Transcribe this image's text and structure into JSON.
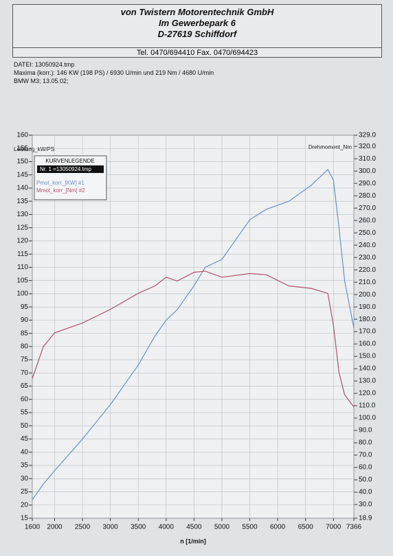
{
  "header": {
    "company": "von Twistern Motorentechnik GmbH",
    "street": "Im Gewerbepark 6",
    "city": "D-27619 Schiffdorf",
    "phone": "Tel. 0470/694410   Fax. 0470/694423",
    "file": "DATEI: 13050924.tmp",
    "maxima": "Maxima (korr.):  146 KW (198 PS) / 6930 U/min  und  219 Nm / 4680 U/min",
    "vehicle": "BMW M3; 13.05.02;"
  },
  "chart_data": {
    "type": "line",
    "xlabel": "n  [1/min]",
    "ylabel": "Leistung_kW/PS",
    "y2label": "Drehmoment_Nm",
    "legend_title": "KURVENLEGENDE",
    "legend_file": "Nr. 1 =13050924.tmp",
    "legend": "upper left",
    "grid": true,
    "x": [
      1600,
      1800,
      2000,
      2500,
      3000,
      3500,
      3800,
      4000,
      4200,
      4500,
      4700,
      5000,
      5500,
      5800,
      6200,
      6600,
      6900,
      7000,
      7100,
      7200,
      7366
    ],
    "series": [
      {
        "name": "Pmot_korr_[KW] #1",
        "color": "#6b8fc4",
        "axis": "y",
        "values": [
          22,
          28,
          33,
          45,
          58,
          73,
          84,
          90,
          94,
          103,
          110,
          113,
          128,
          132,
          135,
          141,
          147,
          143,
          125,
          105,
          87
        ]
      },
      {
        "name": "Mmot_korr_[Nm] #2",
        "color": "#b05068",
        "axis": "y2",
        "values": [
          132,
          158,
          169,
          177,
          188,
          201,
          207,
          214,
          211,
          218,
          219,
          214,
          217,
          216,
          207,
          205,
          201,
          175,
          137,
          119,
          109
        ]
      }
    ],
    "xlim": [
      1600,
      7366
    ],
    "xticks": [
      1600,
      2000,
      2500,
      3000,
      3500,
      4000,
      4500,
      5000,
      5500,
      6000,
      6500,
      7000,
      7366
    ],
    "ylim": [
      15,
      160
    ],
    "yticks": [
      15,
      20,
      25,
      30,
      35,
      40,
      45,
      50,
      55,
      60,
      65,
      70,
      75,
      80,
      85,
      90,
      95,
      100,
      105,
      110,
      115,
      120,
      125,
      130,
      135,
      140,
      145,
      150,
      155,
      160
    ],
    "y2lim": [
      18.9,
      329.0
    ],
    "y2ticks": [
      {
        "value": 18.9,
        "label": "18.9"
      },
      {
        "value": 30,
        "label": "30.0"
      },
      {
        "value": 40,
        "label": "40.0"
      },
      {
        "value": 50,
        "label": "50.0"
      },
      {
        "value": 60,
        "label": "60.0"
      },
      {
        "value": 70,
        "label": "70.0"
      },
      {
        "value": 80,
        "label": "80.0"
      },
      {
        "value": 90,
        "label": "90.0"
      },
      {
        "value": 100,
        "label": "100.0"
      },
      {
        "value": 110,
        "label": "110.0"
      },
      {
        "value": 120,
        "label": "120.0"
      },
      {
        "value": 130,
        "label": "130.0"
      },
      {
        "value": 140,
        "label": "140.0"
      },
      {
        "value": 150,
        "label": "150.0"
      },
      {
        "value": 160,
        "label": "160.0"
      },
      {
        "value": 170,
        "label": "170.0"
      },
      {
        "value": 180,
        "label": "180.0"
      },
      {
        "value": 190,
        "label": "190.0"
      },
      {
        "value": 200,
        "label": "200.0"
      },
      {
        "value": 210,
        "label": "210.0"
      },
      {
        "value": 220,
        "label": "220.0"
      },
      {
        "value": 230,
        "label": "230.0"
      },
      {
        "value": 240,
        "label": "240.0"
      },
      {
        "value": 250,
        "label": "250.0"
      },
      {
        "value": 260,
        "label": "260.0"
      },
      {
        "value": 270,
        "label": "270.0"
      },
      {
        "value": 280,
        "label": "280.0"
      },
      {
        "value": 290,
        "label": "290.0"
      },
      {
        "value": 300,
        "label": "300.0"
      },
      {
        "value": 310,
        "label": "310.0"
      },
      {
        "value": 320,
        "label": "320.0"
      },
      {
        "value": 329.0,
        "label": "329.0"
      }
    ]
  }
}
